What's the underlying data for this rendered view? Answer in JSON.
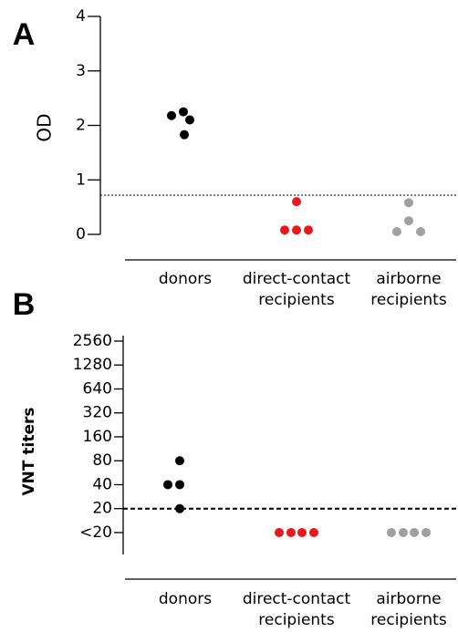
{
  "chart_data": [
    {
      "type": "scatter",
      "panel": "A",
      "y_label": "OD",
      "categories": [
        [
          "donors"
        ],
        [
          "direct-contact",
          "recipients"
        ],
        [
          "airborne",
          "recipients"
        ]
      ],
      "values": [
        [
          2.18,
          2.25,
          2.1,
          1.83
        ],
        [
          0.6,
          0.08,
          0.08,
          0.08
        ],
        [
          0.58,
          0.25,
          0.05,
          0.05
        ]
      ],
      "colors": [
        "#000000",
        "#e8191c",
        "#a0a0a0"
      ],
      "ylim": [
        0,
        4
      ],
      "yticks": [
        0,
        1,
        2,
        3,
        4
      ],
      "threshold": 0.72,
      "threshold_style": "dotted",
      "log_scale": false
    },
    {
      "type": "scatter",
      "panel": "B",
      "y_label": "VNT titers",
      "categories": [
        [
          "donors"
        ],
        [
          "direct-contact",
          "recipients"
        ],
        [
          "airborne",
          "recipients"
        ]
      ],
      "values": [
        [
          80,
          40,
          40,
          20
        ],
        [
          10,
          10,
          10,
          10
        ],
        [
          10,
          10,
          10,
          10
        ]
      ],
      "colors": [
        "#000000",
        "#e8191c",
        "#a0a0a0"
      ],
      "ylim": [
        5.3,
        3000
      ],
      "yticks": [
        {
          "value": 10,
          "label": "<20"
        },
        20,
        40,
        80,
        160,
        320,
        640,
        1280,
        2560
      ],
      "threshold": 20,
      "threshold_style": "dashed",
      "log_scale": true
    }
  ]
}
